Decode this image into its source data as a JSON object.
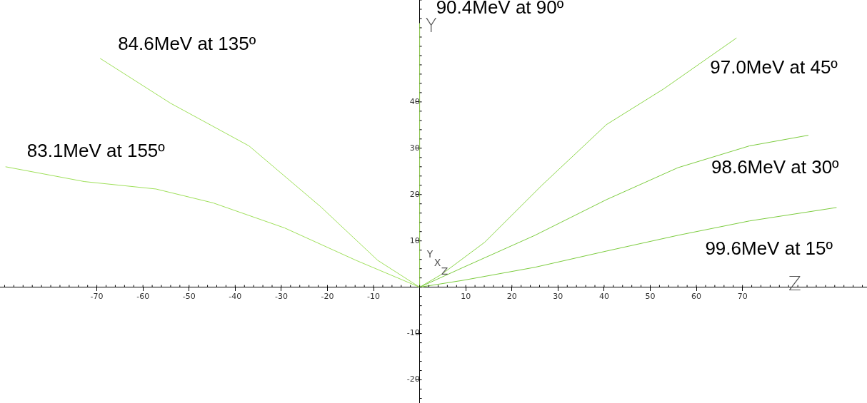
{
  "chart_data": {
    "type": "line",
    "xlabel": "Z",
    "ylabel": "Y",
    "xlim": [
      -91,
      97
    ],
    "ylim": [
      -25,
      62
    ],
    "xticks": [
      -70,
      -60,
      -50,
      -40,
      -30,
      -20,
      -10,
      10,
      20,
      30,
      40,
      50,
      60,
      70
    ],
    "yticks": [
      -20,
      -10,
      10,
      20,
      30,
      40
    ],
    "grid": false,
    "legend": false,
    "marker": "none",
    "annotations": [
      "Y",
      "X",
      "Z"
    ],
    "series": [
      {
        "name": "83.1MeV at 155º",
        "color": "#9fe05a",
        "x": [
          -89.8,
          -72.7,
          -57.2,
          -44.8,
          -29.3,
          -13.8,
          0
        ],
        "values": [
          26,
          22.8,
          21.2,
          18.2,
          12.8,
          5.8,
          0
        ]
      },
      {
        "name": "84.6MeV at 135º",
        "color": "#9fe05a",
        "x": [
          -69.3,
          -54,
          -37,
          -21.5,
          -9.1,
          0
        ],
        "values": [
          49.4,
          39.7,
          30.5,
          17.4,
          5.8,
          0
        ]
      },
      {
        "name": "90.4MeV at 90º",
        "color": "#9fe05a",
        "x": [
          0,
          0
        ],
        "values": [
          0,
          57
        ]
      },
      {
        "name": "97.0MeV at 45º",
        "color": "#8cd64a",
        "x": [
          0,
          4.8,
          14.1,
          26.5,
          40.5,
          52.9,
          68.7
        ],
        "values": [
          0,
          2.8,
          9.7,
          22,
          35.1,
          42.8,
          53.8
        ]
      },
      {
        "name": "98.6MeV at 30º",
        "color": "#7ccc3e",
        "x": [
          0,
          9.5,
          25,
          40.5,
          56,
          71.5,
          84.3
        ],
        "values": [
          0,
          4.3,
          11.2,
          18.9,
          25.8,
          30.5,
          32.8
        ]
      },
      {
        "name": "99.6MeV at 15º",
        "color": "#7ccc3e",
        "x": [
          0,
          9.5,
          25,
          40.5,
          56,
          71.5,
          90.4
        ],
        "values": [
          0,
          1.5,
          4.3,
          7.8,
          11.2,
          14.3,
          17.2
        ]
      }
    ]
  }
}
